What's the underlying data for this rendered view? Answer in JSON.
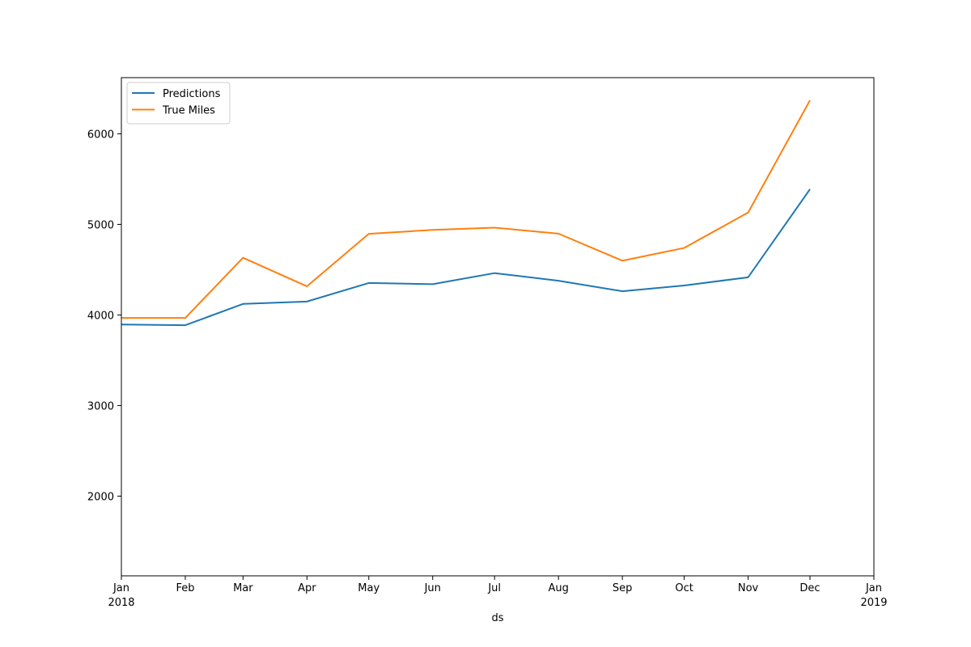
{
  "chart_data": {
    "type": "line",
    "title": "",
    "xlabel": "ds",
    "ylabel": "",
    "x": [
      "2018-01-01",
      "2018-02-01",
      "2018-03-01",
      "2018-04-01",
      "2018-05-01",
      "2018-06-01",
      "2018-07-01",
      "2018-08-01",
      "2018-09-01",
      "2018-10-01",
      "2018-11-01",
      "2018-12-01"
    ],
    "xlim": [
      "2018-01-01",
      "2019-01-01"
    ],
    "ylim": [
      1120,
      6620
    ],
    "x_ticks": [
      {
        "date": "2018-01-01",
        "label": "Jan",
        "sub": "2018"
      },
      {
        "date": "2018-02-01",
        "label": "Feb",
        "sub": ""
      },
      {
        "date": "2018-03-01",
        "label": "Mar",
        "sub": ""
      },
      {
        "date": "2018-04-01",
        "label": "Apr",
        "sub": ""
      },
      {
        "date": "2018-05-01",
        "label": "May",
        "sub": ""
      },
      {
        "date": "2018-06-01",
        "label": "Jun",
        "sub": ""
      },
      {
        "date": "2018-07-01",
        "label": "Jul",
        "sub": ""
      },
      {
        "date": "2018-08-01",
        "label": "Aug",
        "sub": ""
      },
      {
        "date": "2018-09-01",
        "label": "Sep",
        "sub": ""
      },
      {
        "date": "2018-10-01",
        "label": "Oct",
        "sub": ""
      },
      {
        "date": "2018-11-01",
        "label": "Nov",
        "sub": ""
      },
      {
        "date": "2018-12-01",
        "label": "Dec",
        "sub": ""
      },
      {
        "date": "2019-01-01",
        "label": "Jan",
        "sub": "2019"
      }
    ],
    "y_ticks": [
      2000,
      3000,
      4000,
      5000,
      6000
    ],
    "grid": false,
    "legend_position": "top-left",
    "series": [
      {
        "name": "Predictions",
        "color": "#1f77b4",
        "values": [
          3895,
          3887,
          4122,
          4148,
          4353,
          4340,
          4462,
          4378,
          4262,
          4325,
          4416,
          5388
        ]
      },
      {
        "name": "True Miles",
        "color": "#ff7f0e",
        "values": [
          3967,
          3967,
          4632,
          4316,
          4896,
          4939,
          4964,
          4898,
          4599,
          4740,
          5131,
          6370
        ]
      }
    ]
  }
}
